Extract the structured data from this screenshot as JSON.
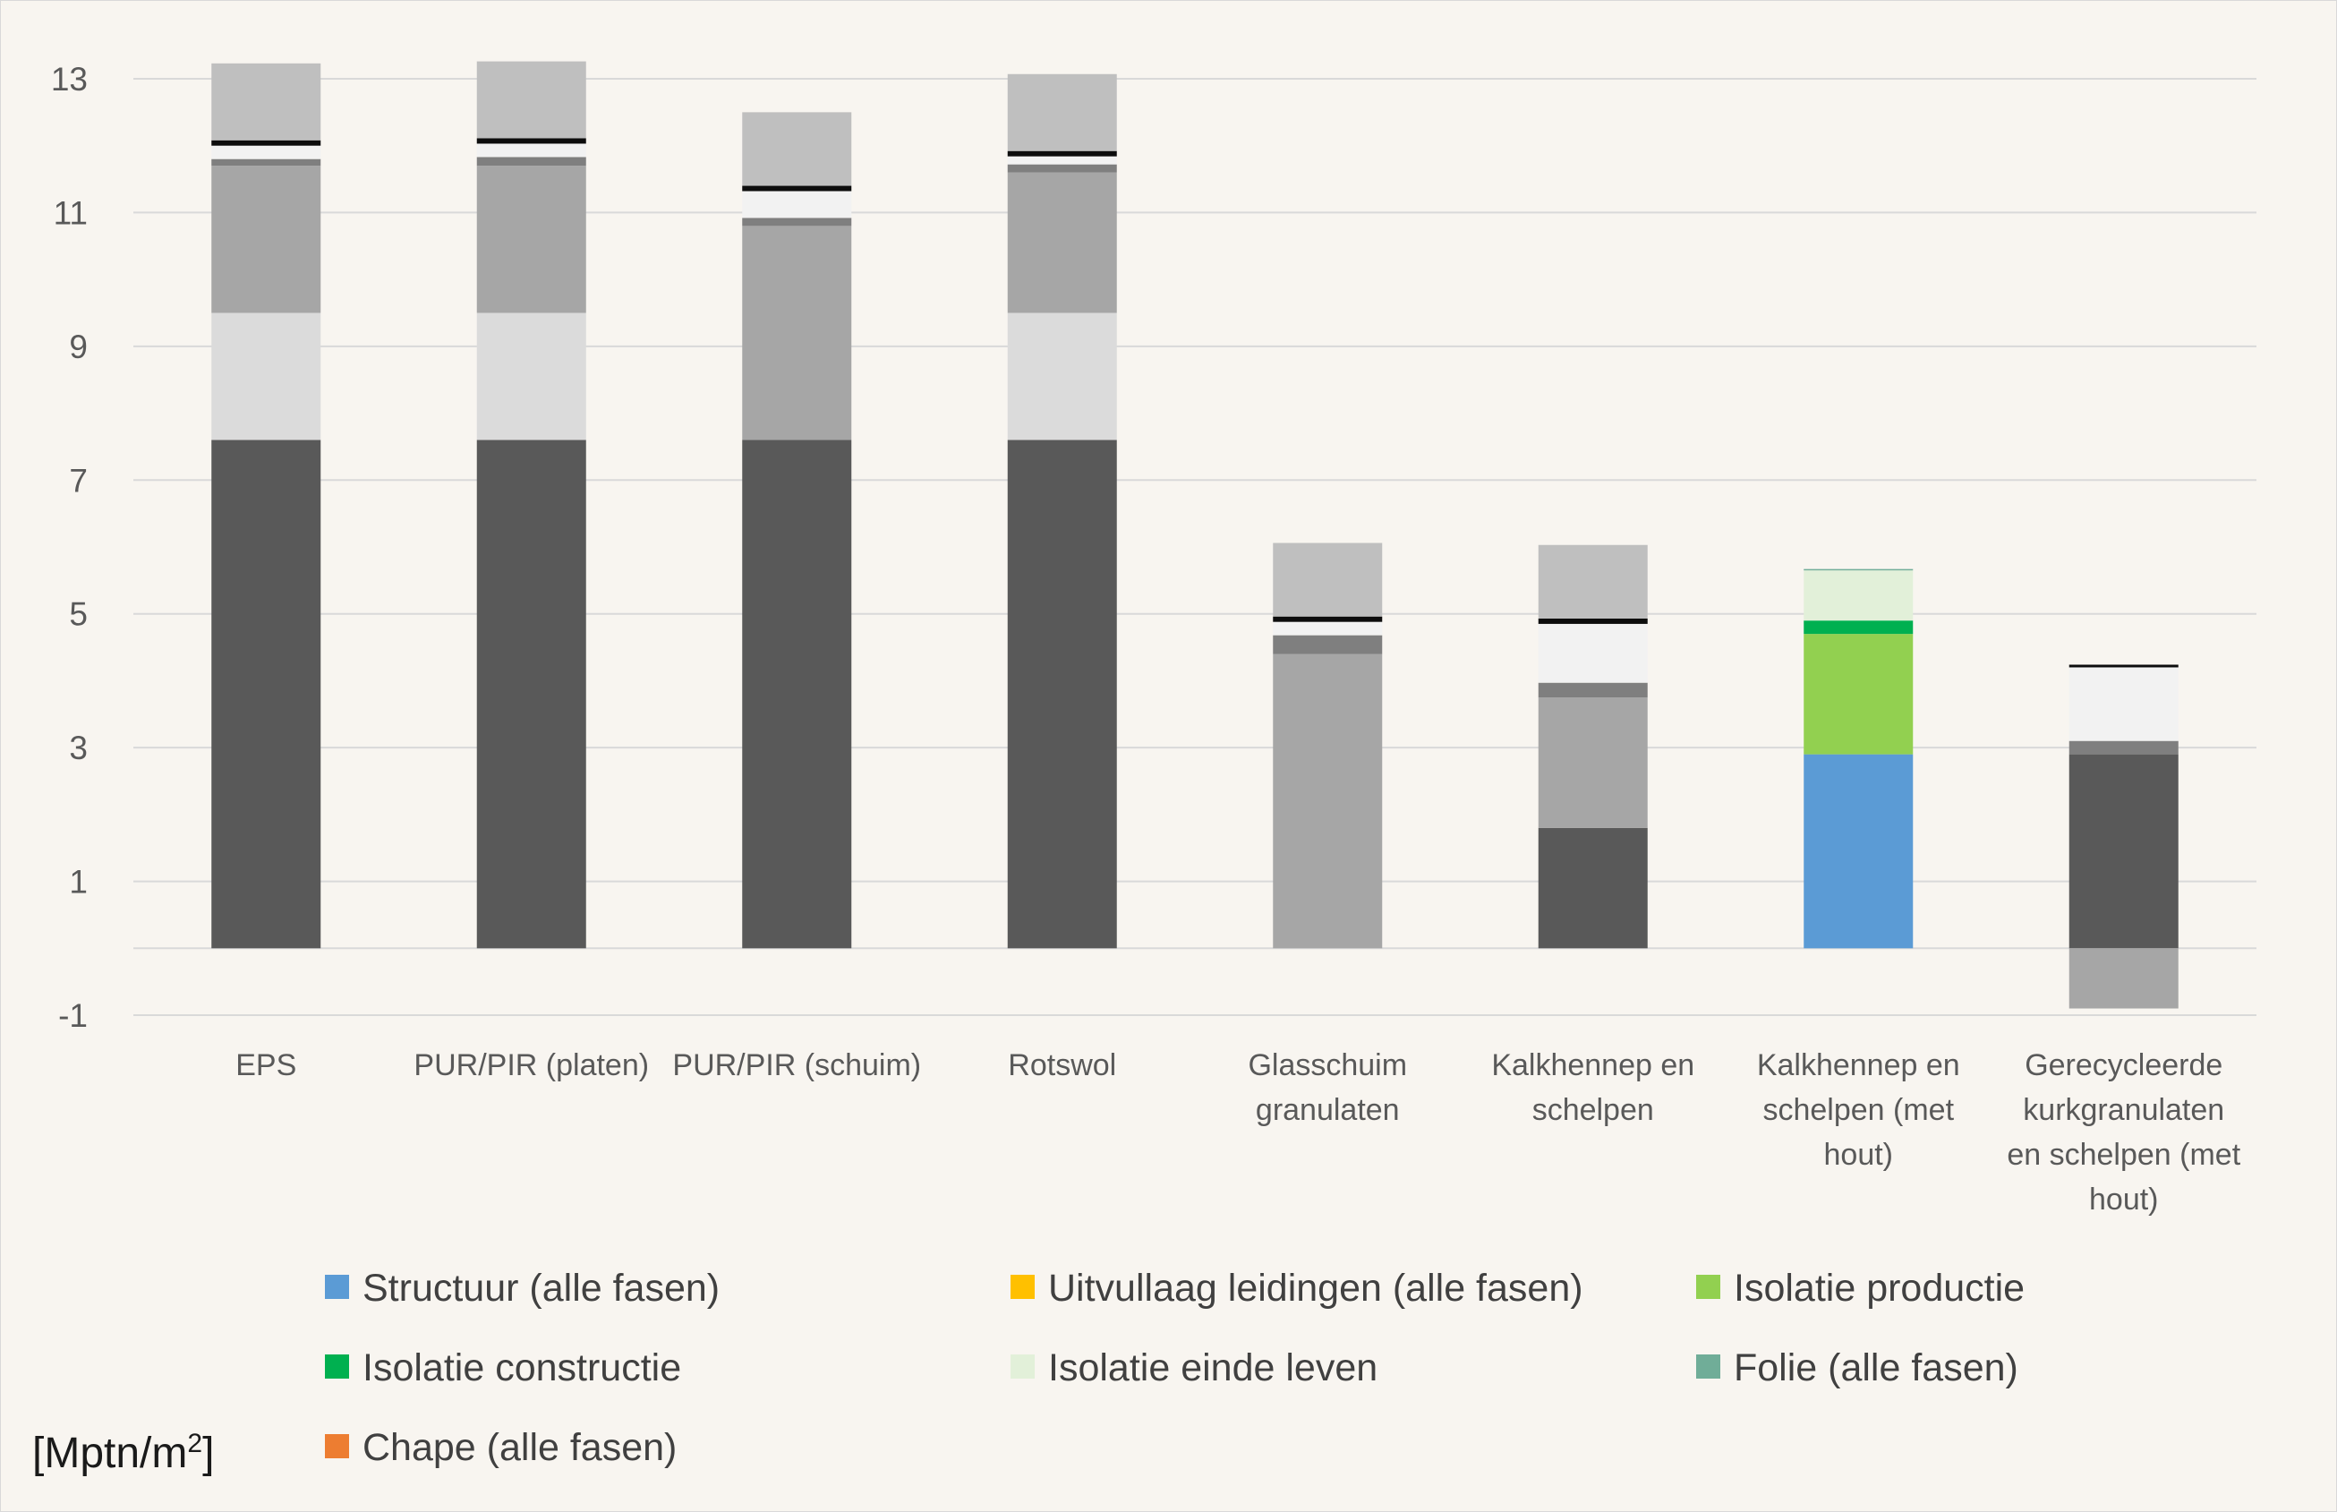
{
  "chart_data": {
    "type": "bar",
    "stacked": true,
    "categories": [
      "EPS",
      "PUR/PIR (platen)",
      "PUR/PIR (schuim)",
      "Rotswol",
      "Glasschuim granulaten",
      "Kalkhennep en schelpen",
      "Kalkhennep en schelpen (met hout)",
      "Gerecycleerde kurkgranulaten en schelpen (met hout)"
    ],
    "category_lines": [
      [
        "EPS"
      ],
      [
        "PUR/PIR (platen)"
      ],
      [
        "PUR/PIR (schuim)"
      ],
      [
        "Rotswol"
      ],
      [
        "Glasschuim",
        "granulaten"
      ],
      [
        "Kalkhennep en",
        "schelpen"
      ],
      [
        "Kalkhennep en",
        "schelpen (met",
        "hout)"
      ],
      [
        "Gerecycleerde",
        "kurkgranulaten",
        "en schelpen (met",
        "hout)"
      ]
    ],
    "series": [
      {
        "name": "Structuur (alle fasen)",
        "color": "#5b9bd5",
        "values": [
          7.6,
          7.6,
          7.6,
          7.6,
          0,
          1.8,
          2.9,
          2.9
        ]
      },
      {
        "name": "Uitvullaag leidingen (alle fasen)",
        "color": "#ffc000",
        "values": [
          1.9,
          1.9,
          0,
          1.9,
          0,
          0,
          0,
          0
        ]
      },
      {
        "name": "Isolatie productie",
        "color": "#92d050",
        "values": [
          2.2,
          2.2,
          3.2,
          2.1,
          4.4,
          1.95,
          1.8,
          -0.9
        ]
      },
      {
        "name": "Isolatie constructie",
        "color": "#00b050",
        "values": [
          0.1,
          0.13,
          0.12,
          0.12,
          0.28,
          0.22,
          0.2,
          0.2
        ]
      },
      {
        "name": "Isolatie einde leven",
        "color": "#e2f0d9",
        "values": [
          0.2,
          0.2,
          0.4,
          0.12,
          0.2,
          0.88,
          0.75,
          1.1
        ]
      },
      {
        "name": "Folie (alle fasen)",
        "color": "#70ad98",
        "values": [
          0.08,
          0.08,
          0.08,
          0.08,
          0.08,
          0.08,
          0.02,
          0.04
        ]
      },
      {
        "name": "Chape (alle fasen)",
        "color": "#ed7d31",
        "values": [
          1.15,
          1.15,
          1.1,
          1.15,
          1.1,
          1.1,
          0,
          0
        ]
      }
    ],
    "render_colors": [
      [
        "#595959",
        "#dbdbdb",
        "#a6a6a6",
        "#7f7f7f",
        "#f2f2f2",
        "#0d0d0d",
        "#bfbfbf"
      ],
      [
        "#595959",
        "#dbdbdb",
        "#a6a6a6",
        "#7f7f7f",
        "#f2f2f2",
        "#0d0d0d",
        "#bfbfbf"
      ],
      [
        "#595959",
        "#dbdbdb",
        "#a6a6a6",
        "#7f7f7f",
        "#f2f2f2",
        "#0d0d0d",
        "#bfbfbf"
      ],
      [
        "#595959",
        "#dbdbdb",
        "#a6a6a6",
        "#7f7f7f",
        "#f2f2f2",
        "#0d0d0d",
        "#bfbfbf"
      ],
      [
        "#595959",
        "#dbdbdb",
        "#a6a6a6",
        "#7f7f7f",
        "#f2f2f2",
        "#0d0d0d",
        "#bfbfbf"
      ],
      [
        "#595959",
        "#dbdbdb",
        "#a6a6a6",
        "#7f7f7f",
        "#f2f2f2",
        "#0d0d0d",
        "#bfbfbf"
      ],
      [
        "#5b9bd5",
        "#ffc000",
        "#92d050",
        "#00b050",
        "#e2f0d9",
        "#70ad98",
        "#ed7d31"
      ],
      [
        "#595959",
        "#dbdbdb",
        "#a6a6a6",
        "#7f7f7f",
        "#f2f2f2",
        "#0d0d0d",
        "#bfbfbf"
      ]
    ],
    "yticks": [
      -1,
      1,
      3,
      5,
      7,
      9,
      11,
      13
    ],
    "ylim": [
      -1.5,
      13.8
    ],
    "grid": true,
    "legend_position": "bottom",
    "ylabel": "[Mptn/m",
    "ylabel_superscript": "2",
    "ylabel_suffix": "]"
  }
}
